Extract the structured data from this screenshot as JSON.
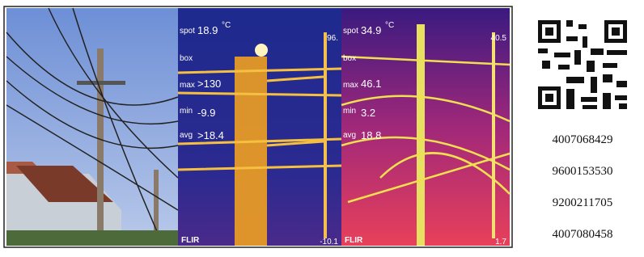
{
  "thermal_left": {
    "spot_label": "spot",
    "spot": "18.9",
    "unit": "°C",
    "scale_top": "96.",
    "box_label": "box",
    "max_label": "max",
    "max": ">130",
    "min_label": "min",
    "min": "-9.9",
    "avg_label": "avg",
    "avg": ">18.4",
    "brand": "FLIR",
    "scale_bottom": "-10.1"
  },
  "thermal_right": {
    "spot_label": "spot",
    "spot": "34.9",
    "unit": "°C",
    "scale_top": "40.5",
    "box_label": "box",
    "max_label": "max",
    "max": "46.1",
    "min_label": "min",
    "min": "3.2",
    "avg_label": "avg",
    "avg": "18.8",
    "brand": "FLIR",
    "scale_bottom": "1.7"
  },
  "numbers": [
    "4007068429",
    "9600153530",
    "9200211705",
    "4007080458"
  ]
}
